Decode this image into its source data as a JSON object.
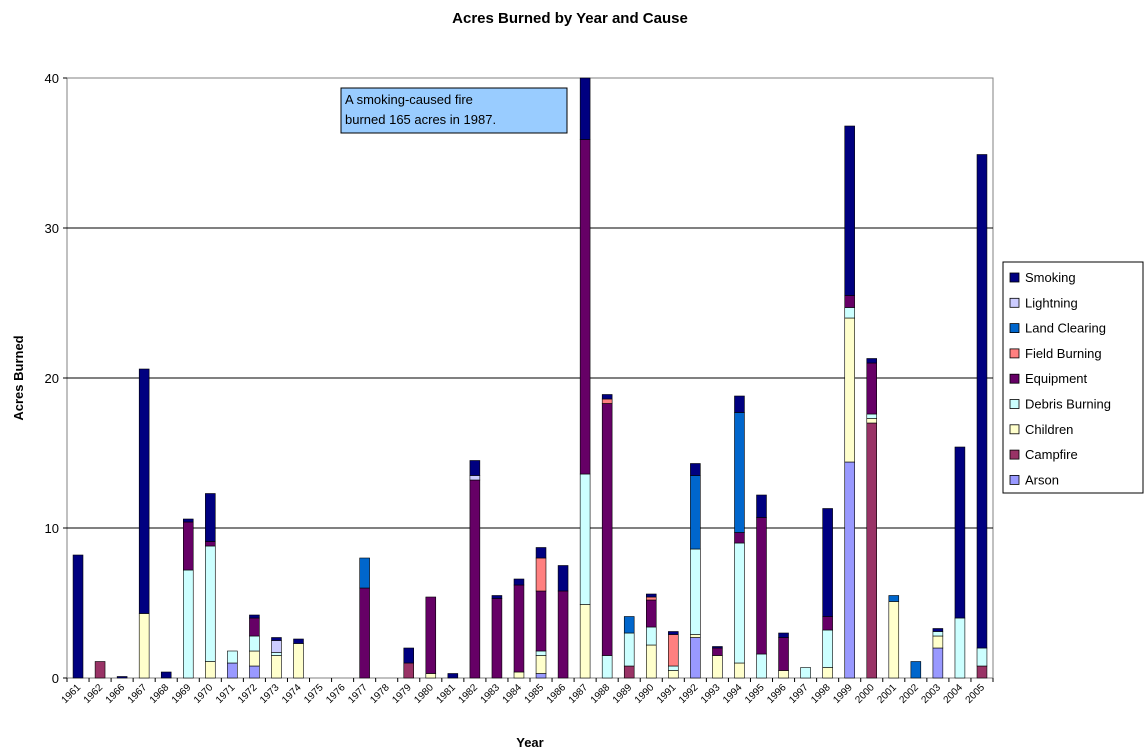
{
  "chart_data": {
    "type": "stacked-bar",
    "title": "Acres Burned by Year and Cause",
    "xlabel": "Year",
    "ylabel": "Acres Burned",
    "ylim": [
      0,
      40
    ],
    "yticks": [
      "0",
      "10",
      "20",
      "30",
      "40"
    ],
    "grid": true,
    "legend_position": "right",
    "annotation": {
      "lines": [
        "A smoking-caused fire",
        "burned 165 acres in 1987."
      ]
    },
    "categories": [
      "1961",
      "1962",
      "1966",
      "1967",
      "1968",
      "1969",
      "1970",
      "1971",
      "1972",
      "1973",
      "1974",
      "1975",
      "1976",
      "1977",
      "1978",
      "1979",
      "1980",
      "1981",
      "1982",
      "1983",
      "1984",
      "1985",
      "1986",
      "1987",
      "1988",
      "1989",
      "1990",
      "1991",
      "1992",
      "1993",
      "1994",
      "1995",
      "1996",
      "1997",
      "1998",
      "1999",
      "2000",
      "2001",
      "2002",
      "2003",
      "2004",
      "2005"
    ],
    "series": [
      {
        "name": "Arson",
        "color": "#9999FF",
        "values": [
          0,
          0,
          0,
          0,
          0,
          0,
          0,
          1,
          0.8,
          0,
          0,
          0,
          0,
          0,
          0,
          0,
          0,
          0,
          0,
          0,
          0,
          0.3,
          0,
          0,
          0,
          0,
          0,
          0,
          2.7,
          0,
          0,
          0,
          0,
          0,
          0,
          14.4,
          0,
          0,
          0,
          2.0,
          0,
          0
        ]
      },
      {
        "name": "Campfire",
        "color": "#993366",
        "values": [
          0,
          1.1,
          0,
          0,
          0,
          0,
          0,
          0,
          0,
          0,
          0,
          0,
          0,
          0,
          0,
          1.0,
          0,
          0,
          0,
          0,
          0,
          0,
          0,
          0,
          0,
          0.8,
          0,
          0,
          0,
          0,
          0,
          0,
          0,
          0,
          0,
          0,
          17.0,
          0,
          0,
          0,
          0,
          0.8
        ]
      },
      {
        "name": "Children",
        "color": "#FFFFCC",
        "values": [
          0,
          0,
          0,
          4.3,
          0,
          0,
          1.1,
          0,
          1.0,
          1.5,
          2.3,
          0,
          0,
          0,
          0,
          0,
          0.3,
          0,
          0,
          0,
          0.4,
          1.2,
          0,
          4.9,
          0,
          0,
          2.2,
          0.5,
          0.2,
          1.5,
          1.0,
          0,
          0.5,
          0,
          0.7,
          9.6,
          0.3,
          5.1,
          0,
          0.8,
          0,
          0
        ]
      },
      {
        "name": "Debris Burning",
        "color": "#CCFFFF",
        "values": [
          0,
          0,
          0,
          0,
          0,
          7.2,
          7.7,
          0.8,
          1.0,
          0.2,
          0,
          0,
          0,
          0,
          0,
          0,
          0,
          0,
          0,
          0,
          0,
          0.3,
          0,
          8.7,
          1.5,
          2.2,
          1.2,
          0.3,
          5.7,
          0,
          8.0,
          1.6,
          0,
          0.7,
          2.5,
          0.7,
          0.3,
          0,
          0,
          0.3,
          4.0,
          1.2
        ]
      },
      {
        "name": "Equipment",
        "color": "#660066",
        "values": [
          0,
          0,
          0,
          0,
          0,
          3.2,
          0.3,
          0,
          1.2,
          0,
          0,
          0,
          0,
          6.0,
          0,
          0,
          5.1,
          0,
          13.2,
          5.3,
          5.8,
          4.0,
          5.8,
          22.3,
          16.8,
          0,
          1.8,
          0,
          0,
          0.5,
          0.7,
          9.1,
          2.2,
          0,
          0.9,
          0.8,
          3.4,
          0,
          0,
          0,
          0,
          0
        ]
      },
      {
        "name": "Field Burning",
        "color": "#FF8080",
        "values": [
          0,
          0,
          0,
          0,
          0,
          0,
          0,
          0,
          0,
          0,
          0,
          0,
          0,
          0,
          0,
          0,
          0,
          0,
          0,
          0,
          0,
          2.2,
          0,
          0,
          0.3,
          0,
          0.2,
          2.1,
          0,
          0,
          0,
          0,
          0,
          0,
          0,
          0,
          0,
          0,
          0,
          0,
          0,
          0
        ]
      },
      {
        "name": "Land Clearing",
        "color": "#0066CC",
        "values": [
          0,
          0,
          0,
          0,
          0,
          0,
          0,
          0,
          0,
          0,
          0,
          0,
          0,
          2.0,
          0,
          0,
          0,
          0,
          0,
          0,
          0,
          0,
          0,
          0,
          0,
          1.1,
          0,
          0,
          4.9,
          0,
          8.0,
          0,
          0,
          0,
          0,
          0,
          0,
          0.4,
          1.1,
          0,
          0,
          0
        ]
      },
      {
        "name": "Lightning",
        "color": "#CCCCFF",
        "values": [
          0,
          0,
          0,
          0,
          0,
          0,
          0,
          0,
          0,
          0.8,
          0,
          0,
          0,
          0,
          0,
          0,
          0,
          0,
          0.3,
          0,
          0,
          0,
          0,
          0,
          0,
          0,
          0,
          0,
          0,
          0,
          0,
          0,
          0,
          0,
          0,
          0,
          0,
          0,
          0,
          0,
          0,
          0
        ]
      },
      {
        "name": "Smoking",
        "color": "#000080",
        "values": [
          8.2,
          0,
          0.1,
          16.3,
          0.4,
          0.2,
          3.2,
          0,
          0.2,
          0.2,
          0.3,
          0,
          0,
          0,
          0,
          1.0,
          0,
          0.3,
          1.0,
          0.2,
          0.4,
          0.7,
          1.7,
          4.5,
          0.3,
          0,
          0.2,
          0.2,
          0.8,
          0.1,
          1.1,
          1.5,
          0.3,
          0,
          7.2,
          11.3,
          0.3,
          0,
          0,
          0.2,
          11.4,
          32.9
        ]
      }
    ]
  }
}
